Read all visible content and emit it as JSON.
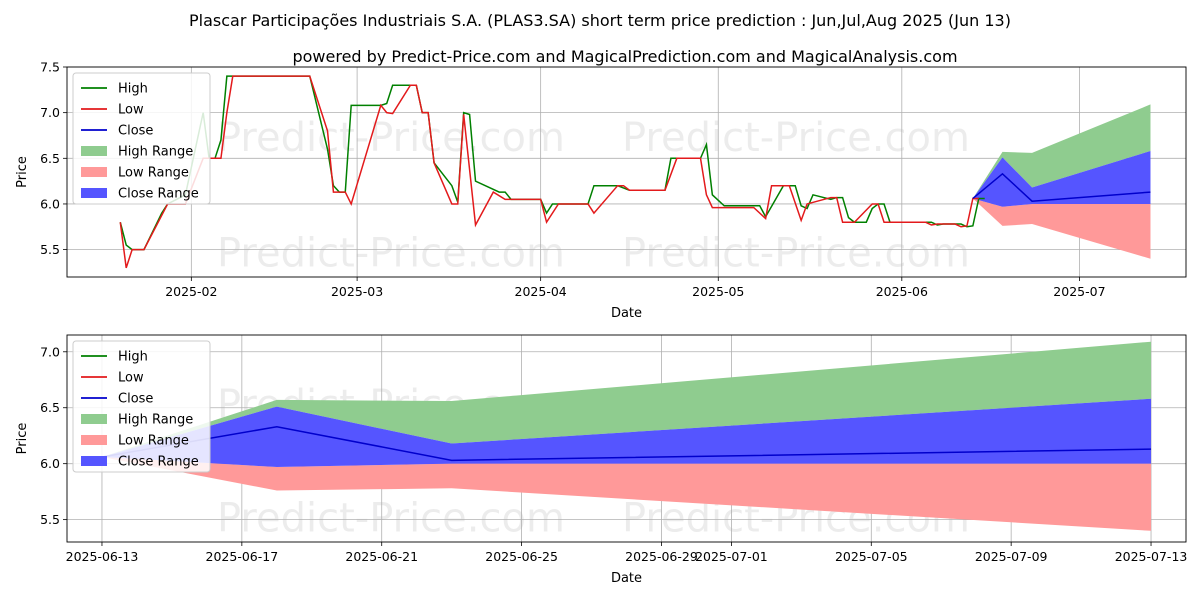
{
  "title": "Plascar Participações Industriais S.A. (PLAS3.SA) short term price prediction : Jun,Jul,Aug 2025 (Jun 13)",
  "subtitle": "powered by Predict-Price.com and MagicalPrediction.com and MagicalAnalysis.com",
  "watermark": "Predict-Price.com",
  "colors": {
    "high": "#008000",
    "low": "#e31a1c",
    "close": "#0000cc",
    "high_range": "#8fcc8f",
    "low_range": "#ff9999",
    "close_range": "#5555ff"
  },
  "chart_data": [
    {
      "type": "line",
      "name": "top",
      "xlabel": "Date",
      "ylabel": "Price",
      "xlim": [
        "2025-01-11",
        "2025-07-19"
      ],
      "ylim": [
        5.2,
        7.5
      ],
      "xticks": [
        {
          "date": "2025-02-01",
          "label": "2025-02"
        },
        {
          "date": "2025-03-01",
          "label": "2025-03"
        },
        {
          "date": "2025-04-01",
          "label": "2025-04"
        },
        {
          "date": "2025-05-01",
          "label": "2025-05"
        },
        {
          "date": "2025-06-01",
          "label": "2025-06"
        },
        {
          "date": "2025-07-01",
          "label": "2025-07"
        }
      ],
      "yticks": [
        5.5,
        6.0,
        6.5,
        7.0,
        7.5
      ],
      "ytick_labels": [
        "5.5",
        "6.0",
        "6.5",
        "7.0",
        "7.5"
      ],
      "legend": [
        "High",
        "Low",
        "Close",
        "High Range",
        "Low Range",
        "Close Range"
      ],
      "legend_position": "top-left",
      "grid": true,
      "high": [
        [
          "2025-01-20",
          5.8
        ],
        [
          "2025-01-21",
          5.55
        ],
        [
          "2025-01-22",
          5.5
        ],
        [
          "2025-01-24",
          5.5
        ],
        [
          "2025-01-27",
          5.9
        ],
        [
          "2025-01-28",
          6.0
        ],
        [
          "2025-01-31",
          6.1
        ],
        [
          "2025-02-03",
          7.0
        ],
        [
          "2025-02-04",
          6.5
        ],
        [
          "2025-02-05",
          6.5
        ],
        [
          "2025-02-06",
          6.7
        ],
        [
          "2025-02-07",
          7.4
        ],
        [
          "2025-02-21",
          7.4
        ],
        [
          "2025-02-24",
          6.6
        ],
        [
          "2025-02-25",
          6.2
        ],
        [
          "2025-02-26",
          6.13
        ],
        [
          "2025-02-27",
          6.13
        ],
        [
          "2025-02-28",
          7.08
        ],
        [
          "2025-03-05",
          7.08
        ],
        [
          "2025-03-06",
          7.1
        ],
        [
          "2025-03-07",
          7.3
        ],
        [
          "2025-03-11",
          7.3
        ],
        [
          "2025-03-12",
          7.0
        ],
        [
          "2025-03-13",
          7.0
        ],
        [
          "2025-03-14",
          6.45
        ],
        [
          "2025-03-17",
          6.2
        ],
        [
          "2025-03-18",
          6.02
        ],
        [
          "2025-03-19",
          7.0
        ],
        [
          "2025-03-20",
          6.98
        ],
        [
          "2025-03-21",
          6.25
        ],
        [
          "2025-03-25",
          6.13
        ],
        [
          "2025-03-26",
          6.13
        ],
        [
          "2025-03-27",
          6.05
        ],
        [
          "2025-04-01",
          6.05
        ],
        [
          "2025-04-02",
          5.9
        ],
        [
          "2025-04-03",
          6.0
        ],
        [
          "2025-04-09",
          6.0
        ],
        [
          "2025-04-10",
          6.2
        ],
        [
          "2025-04-14",
          6.2
        ],
        [
          "2025-04-16",
          6.15
        ],
        [
          "2025-04-22",
          6.15
        ],
        [
          "2025-04-23",
          6.5
        ],
        [
          "2025-04-28",
          6.5
        ],
        [
          "2025-04-29",
          6.65
        ],
        [
          "2025-04-30",
          6.1
        ],
        [
          "2025-05-02",
          5.98
        ],
        [
          "2025-05-08",
          5.98
        ],
        [
          "2025-05-09",
          5.86
        ],
        [
          "2025-05-12",
          6.2
        ],
        [
          "2025-05-14",
          6.2
        ],
        [
          "2025-05-15",
          5.98
        ],
        [
          "2025-05-16",
          5.95
        ],
        [
          "2025-05-17",
          6.1
        ],
        [
          "2025-05-20",
          6.05
        ],
        [
          "2025-05-21",
          6.07
        ],
        [
          "2025-05-22",
          6.07
        ],
        [
          "2025-05-23",
          5.85
        ],
        [
          "2025-05-24",
          5.8
        ],
        [
          "2025-05-26",
          5.8
        ],
        [
          "2025-05-27",
          5.95
        ],
        [
          "2025-05-28",
          6.0
        ],
        [
          "2025-05-29",
          6.0
        ],
        [
          "2025-05-30",
          5.8
        ],
        [
          "2025-06-06",
          5.8
        ],
        [
          "2025-06-07",
          5.77
        ],
        [
          "2025-06-08",
          5.78
        ],
        [
          "2025-06-11",
          5.78
        ],
        [
          "2025-06-12",
          5.75
        ],
        [
          "2025-06-13",
          5.76
        ],
        [
          "2025-06-14",
          6.06
        ],
        [
          "2025-06-15",
          6.06
        ]
      ],
      "low": [
        [
          "2025-01-20",
          5.8
        ],
        [
          "2025-01-21",
          5.3
        ],
        [
          "2025-01-22",
          5.5
        ],
        [
          "2025-01-24",
          5.5
        ],
        [
          "2025-01-28",
          6.0
        ],
        [
          "2025-01-31",
          6.0
        ],
        [
          "2025-02-03",
          6.5
        ],
        [
          "2025-02-05",
          6.5
        ],
        [
          "2025-02-06",
          6.5
        ],
        [
          "2025-02-07",
          7.0
        ],
        [
          "2025-02-08",
          7.4
        ],
        [
          "2025-02-21",
          7.4
        ],
        [
          "2025-02-24",
          6.8
        ],
        [
          "2025-02-25",
          6.13
        ],
        [
          "2025-02-27",
          6.13
        ],
        [
          "2025-02-28",
          6.0
        ],
        [
          "2025-03-05",
          7.08
        ],
        [
          "2025-03-06",
          7.0
        ],
        [
          "2025-03-07",
          6.99
        ],
        [
          "2025-03-10",
          7.3
        ],
        [
          "2025-03-11",
          7.3
        ],
        [
          "2025-03-12",
          7.0
        ],
        [
          "2025-03-13",
          7.0
        ],
        [
          "2025-03-14",
          6.45
        ],
        [
          "2025-03-17",
          6.0
        ],
        [
          "2025-03-18",
          6.0
        ],
        [
          "2025-03-19",
          6.98
        ],
        [
          "2025-03-21",
          5.77
        ],
        [
          "2025-03-24",
          6.13
        ],
        [
          "2025-03-26",
          6.05
        ],
        [
          "2025-04-01",
          6.05
        ],
        [
          "2025-04-02",
          5.8
        ],
        [
          "2025-04-04",
          6.0
        ],
        [
          "2025-04-09",
          6.0
        ],
        [
          "2025-04-10",
          5.9
        ],
        [
          "2025-04-14",
          6.2
        ],
        [
          "2025-04-15",
          6.2
        ],
        [
          "2025-04-16",
          6.15
        ],
        [
          "2025-04-22",
          6.15
        ],
        [
          "2025-04-24",
          6.5
        ],
        [
          "2025-04-28",
          6.5
        ],
        [
          "2025-04-29",
          6.1
        ],
        [
          "2025-04-30",
          5.96
        ],
        [
          "2025-05-07",
          5.96
        ],
        [
          "2025-05-09",
          5.84
        ],
        [
          "2025-05-10",
          6.2
        ],
        [
          "2025-05-13",
          6.2
        ],
        [
          "2025-05-15",
          5.82
        ],
        [
          "2025-05-16",
          6.0
        ],
        [
          "2025-05-20",
          6.07
        ],
        [
          "2025-05-21",
          6.07
        ],
        [
          "2025-05-22",
          5.8
        ],
        [
          "2025-05-24",
          5.8
        ],
        [
          "2025-05-27",
          6.0
        ],
        [
          "2025-05-28",
          6.0
        ],
        [
          "2025-05-29",
          5.8
        ],
        [
          "2025-06-05",
          5.8
        ],
        [
          "2025-06-06",
          5.77
        ],
        [
          "2025-06-07",
          5.78
        ],
        [
          "2025-06-10",
          5.78
        ],
        [
          "2025-06-11",
          5.75
        ],
        [
          "2025-06-12",
          5.76
        ],
        [
          "2025-06-13",
          6.06
        ],
        [
          "2025-06-14",
          6.06
        ]
      ]
    },
    {
      "type": "line",
      "name": "forecast",
      "xlabel": "Date",
      "ylabel": "Price",
      "xlim": [
        "2025-06-12",
        "2025-07-14"
      ],
      "ylim": [
        5.3,
        7.15
      ],
      "xticks": [
        {
          "date": "2025-06-13",
          "label": "2025-06-13"
        },
        {
          "date": "2025-06-17",
          "label": "2025-06-17"
        },
        {
          "date": "2025-06-21",
          "label": "2025-06-21"
        },
        {
          "date": "2025-06-25",
          "label": "2025-06-25"
        },
        {
          "date": "2025-06-29",
          "label": "2025-06-29"
        },
        {
          "date": "2025-07-01",
          "label": "2025-07-01"
        },
        {
          "date": "2025-07-05",
          "label": "2025-07-05"
        },
        {
          "date": "2025-07-09",
          "label": "2025-07-09"
        },
        {
          "date": "2025-07-13",
          "label": "2025-07-13"
        }
      ],
      "yticks": [
        5.5,
        6.0,
        6.5,
        7.0
      ],
      "ytick_labels": [
        "5.5",
        "6.0",
        "6.5",
        "7.0"
      ],
      "legend": [
        "High",
        "Low",
        "Close",
        "High Range",
        "Low Range",
        "Close Range"
      ],
      "legend_position": "top-left",
      "grid": true
    }
  ],
  "forecast": {
    "dates": [
      "2025-06-13",
      "2025-06-18",
      "2025-06-23",
      "2025-07-13"
    ],
    "close": [
      6.06,
      6.33,
      6.03,
      6.13
    ],
    "close_range_upper": [
      6.06,
      6.51,
      6.18,
      6.58
    ],
    "close_range_lower": [
      6.06,
      5.97,
      6.0,
      6.0
    ],
    "high_range_upper": [
      6.06,
      6.57,
      6.56,
      7.09
    ],
    "low_range_lower": [
      6.06,
      5.76,
      5.78,
      5.4
    ]
  }
}
